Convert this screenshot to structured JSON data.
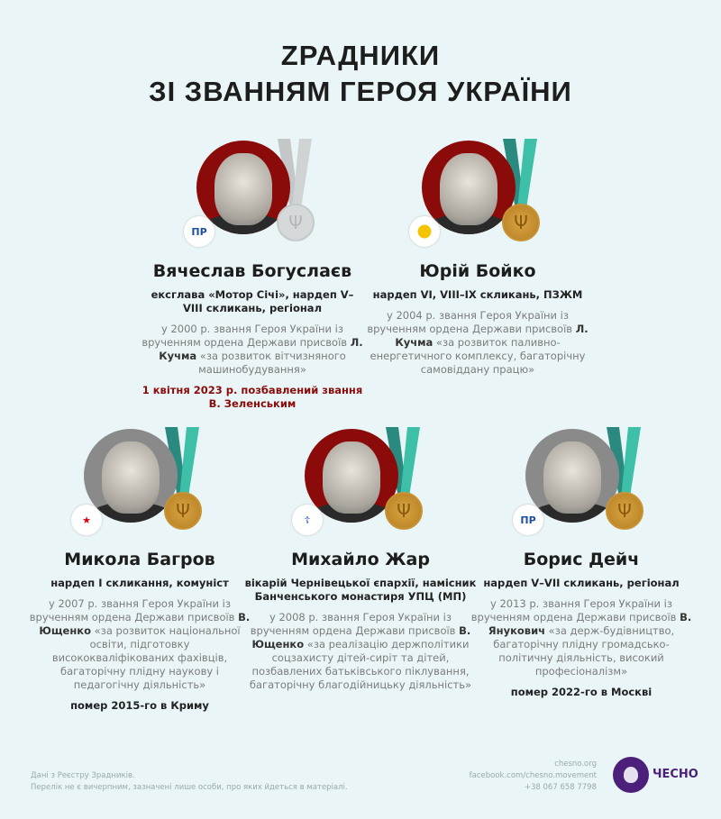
{
  "title_line1": "ZРАДНИКИ",
  "title_line2": "ЗІ ЗВАННЯМ ГЕРОЯ УКРАЇНИ",
  "colors": {
    "background": "#e9f5f6",
    "accent_red": "#8b0a0a",
    "ribbon_light": "#3dbfa8",
    "ribbon_dark": "#2a8a80",
    "medal_gold": "#c8922e",
    "brand_purple": "#4b1f7a"
  },
  "people": [
    {
      "name": "Вячеслав Богуслаєв",
      "role": "ексглава «Мотор Січі», нардеп V–VIII скликань, регіонал",
      "desc_before": "у 2000 р. звання Героя України із врученням ордена Держави присвоїв ",
      "desc_author": "Л. Кучма",
      "desc_after": " «за розвиток вітчизняного машинобудування»",
      "note": "1 квітня 2023 р. позбавлений звання В. Зеленським",
      "badge": "ПР",
      "badge_icon": "party-of-regions-logo",
      "medal_revoked": true,
      "circle_color": "#8b0a0a"
    },
    {
      "name": "Юрій Бойко",
      "role": "нардеп VI, VIII–IX скликань, ПЗЖМ",
      "desc_before": "у 2004 р. звання Героя України із врученням ордена Держави присвоїв ",
      "desc_author": "Л. Кучма",
      "desc_after": " «за розвиток паливно-енергетичного комплексу, багаторічну самовіддану працю»",
      "note": "",
      "badge": "",
      "badge_icon": "opzzh-sunflower-logo",
      "medal_revoked": false,
      "circle_color": "#8b0a0a"
    },
    {
      "name": "Микола Багров",
      "role": "нардеп I скликання, комуніст",
      "desc_before": "у 2007 р. звання Героя України із врученням ордена Держави присвоїв ",
      "desc_author": "В. Ющенко",
      "desc_after": " «за розвиток національної освіти, підготовку висококваліфікованих фахівців, багаторічну плідну наукову і педагогічну діяльність»",
      "note": "помер 2015-го в Криму",
      "badge": "★",
      "badge_icon": "red-star-icon",
      "medal_revoked": false,
      "circle_color": "#8a8a8a"
    },
    {
      "name": "Михайло Жар",
      "role": "вікарій Чернівецької єпархії, намісник Банченського монастиря УПЦ (МП)",
      "desc_before": "у 2008 р. звання Героя України із врученням ордена Держави присвоїв ",
      "desc_author": "В. Ющенко",
      "desc_after": " «за реалізацію держполітики соцзахисту дітей-сиріт та дітей, позбавлених батьківського піклування, багаторічну благодійницьку діяльність»",
      "note": "",
      "badge": "☦",
      "badge_icon": "church-icon",
      "medal_revoked": false,
      "circle_color": "#8b0a0a"
    },
    {
      "name": "Борис Дейч",
      "role": "нардеп V–VII скликань, регіонал",
      "desc_before": "у 2013 р. звання Героя України із врученням ордена Держави присвоїв ",
      "desc_author": "В. Янукович",
      "desc_after": " «за держ-будівництво, багаторічну плідну громадсько-політичну діяльність, високий професіоналізм»",
      "note": "помер 2022-го в Москві",
      "badge": "ПР",
      "badge_icon": "party-of-regions-logo",
      "medal_revoked": false,
      "circle_color": "#8a8a8a"
    }
  ],
  "footer": {
    "source": "Дані з Реєстру Зрадників.",
    "disclaimer": "Перелік не є вичерпним, зазначені лише особи, про яких йдеться в матеріалі.",
    "site": "chesno.org",
    "facebook": "facebook.com/chesno.movement",
    "phone": "+38 067 658 7798",
    "logo": "ЧЕСНО"
  }
}
